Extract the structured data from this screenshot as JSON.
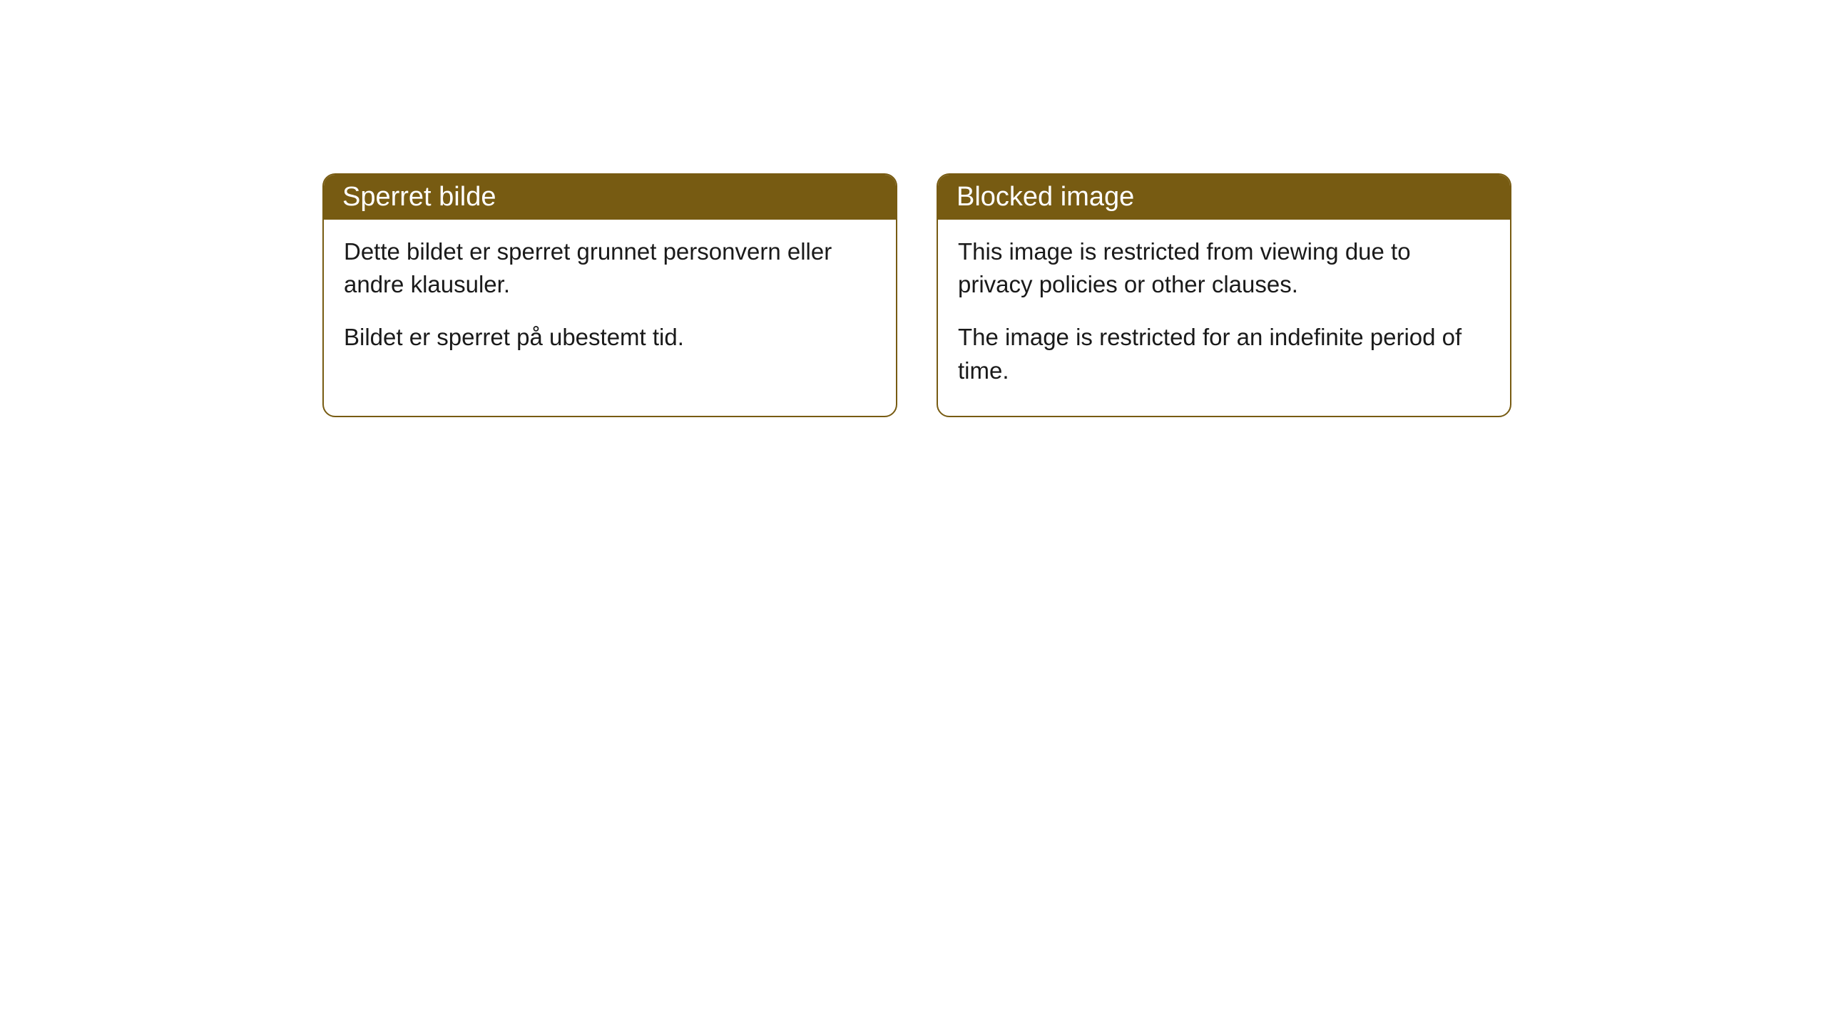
{
  "cards": [
    {
      "title": "Sperret bilde",
      "paragraph1": "Dette bildet er sperret grunnet personvern eller andre klausuler.",
      "paragraph2": "Bildet er sperret på ubestemt tid."
    },
    {
      "title": "Blocked image",
      "paragraph1": "This image is restricted from viewing due to privacy policies or other clauses.",
      "paragraph2": "The image is restricted for an indefinite period of time."
    }
  ],
  "style": {
    "header_background": "#775b12",
    "header_text_color": "#ffffff",
    "border_color": "#775b12",
    "body_background": "#ffffff",
    "body_text_color": "#1a1a1a",
    "border_radius": 18,
    "title_fontsize": 38,
    "body_fontsize": 33
  }
}
